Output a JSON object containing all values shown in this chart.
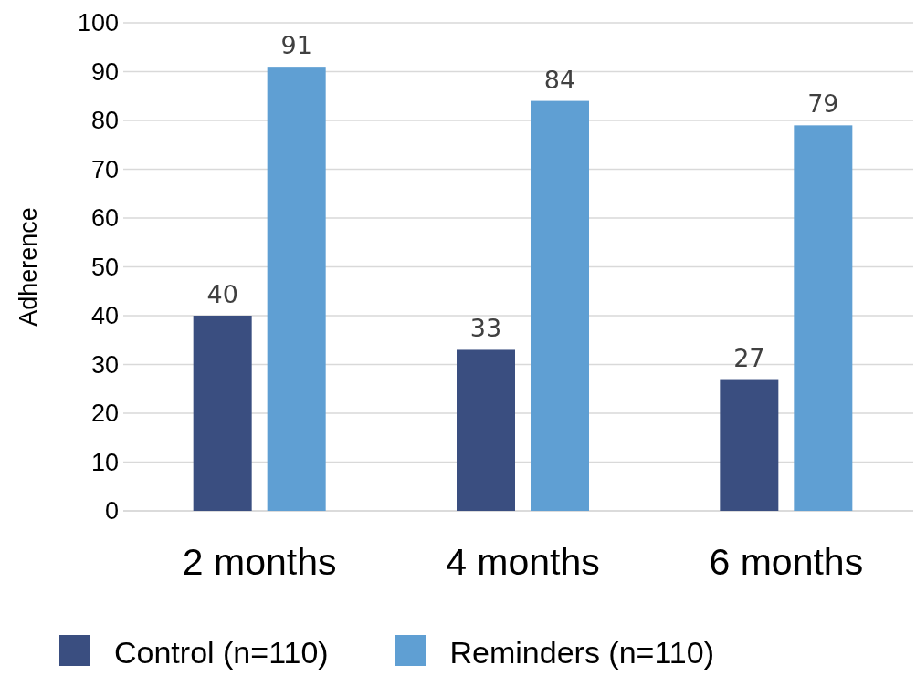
{
  "chart_data": {
    "type": "bar",
    "ylabel": "Adherence",
    "categories": [
      "2 months",
      "4 months",
      "6 months"
    ],
    "series": [
      {
        "name": "Control (n=110)",
        "color": "#3a4e80",
        "values": [
          40,
          33,
          27
        ]
      },
      {
        "name": "Reminders (n=110)",
        "color": "#5f9fd3",
        "values": [
          91,
          84,
          79
        ]
      }
    ],
    "ylim": [
      0,
      100
    ],
    "yticks": [
      0,
      10,
      20,
      30,
      40,
      50,
      60,
      70,
      80,
      90,
      100
    ],
    "grid": "y",
    "legend": "bottom",
    "data_labels": true
  }
}
